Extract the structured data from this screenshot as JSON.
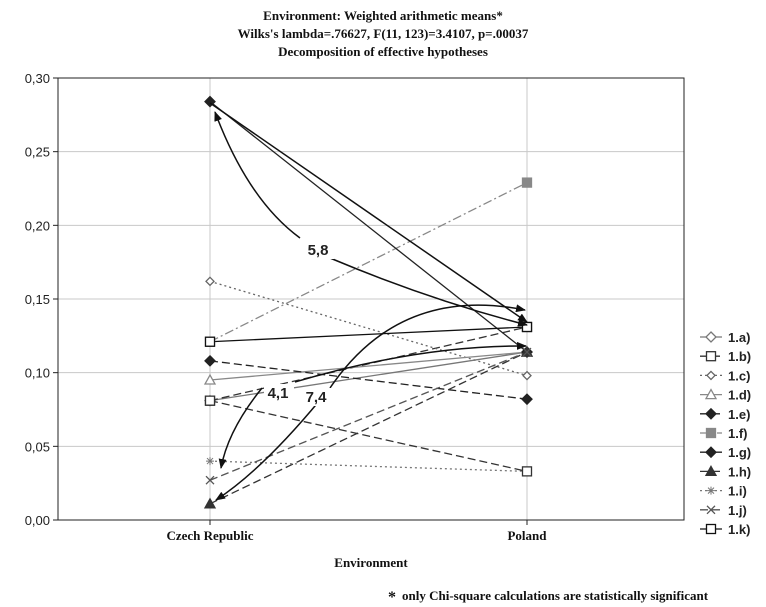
{
  "chart_data": {
    "type": "line",
    "title": "Environment: Weighted arithmetic means*",
    "subtitle_1": "Wilks's lambda=.76627, F(11, 123)=3.4107, p=.00037",
    "subtitle_2": "Decomposition of effective hypotheses",
    "xlabel": "Environment",
    "ylabel": "",
    "categories": [
      "Czech Republic",
      "Poland"
    ],
    "ylim": [
      0,
      0.3
    ],
    "yticks": [
      "0,00",
      "0,05",
      "0,10",
      "0,15",
      "0,20",
      "0,25",
      "0,30"
    ],
    "grid": true,
    "legend_position": "right",
    "series": [
      {
        "name": "1.a)",
        "values": [
          0.081,
          0.114
        ],
        "marker": "diamond-open",
        "dash": "solid",
        "color": "#777777"
      },
      {
        "name": "1.b)",
        "values": [
          0.081,
          0.131
        ],
        "marker": "square-open",
        "dash": "dashed",
        "color": "#333333"
      },
      {
        "name": "1.c)",
        "values": [
          0.162,
          0.098
        ],
        "marker": "diamond-open-small",
        "dash": "dotted",
        "color": "#666666"
      },
      {
        "name": "1.d)",
        "values": [
          0.095,
          0.114
        ],
        "marker": "triangle-open",
        "dash": "solid",
        "color": "#888888"
      },
      {
        "name": "1.e)",
        "values": [
          0.108,
          0.082
        ],
        "marker": "diamond-filled",
        "dash": "dashed",
        "color": "#222222"
      },
      {
        "name": "1.f)",
        "values": [
          0.121,
          0.229
        ],
        "marker": "square-filled",
        "dash": "dashdot",
        "color": "#888888"
      },
      {
        "name": "1.g)",
        "values": [
          0.284,
          0.114
        ],
        "marker": "diamond-filled",
        "dash": "solid",
        "color": "#222222"
      },
      {
        "name": "1.h)",
        "values": [
          0.011,
          0.114
        ],
        "marker": "triangle-filled",
        "dash": "dashed",
        "color": "#333333"
      },
      {
        "name": "1.i)",
        "values": [
          0.04,
          0.033
        ],
        "marker": "star",
        "dash": "dotted",
        "color": "#777777"
      },
      {
        "name": "1.j)",
        "values": [
          0.027,
          0.114
        ],
        "marker": "cross-box",
        "dash": "dashed",
        "color": "#555555"
      },
      {
        "name": "1.k)",
        "values": [
          0.121,
          0.131
        ],
        "marker": "square-open",
        "dash": "solid",
        "color": "#111111"
      },
      {
        "name": "",
        "values": [
          0.081,
          0.033
        ],
        "marker": "square-open",
        "dash": "dashed",
        "color": "#333333"
      }
    ],
    "annotations": [
      {
        "text": "5,8",
        "x": "Czech Republic",
        "y": 0.215
      },
      {
        "text": "4,1",
        "x": "Czech Republic",
        "y": 0.095
      },
      {
        "text": "7,4",
        "x": "Czech Republic",
        "y": 0.09
      }
    ],
    "footnote_mark": "*",
    "footnote": "only Chi-square calculations are statistically significant"
  }
}
